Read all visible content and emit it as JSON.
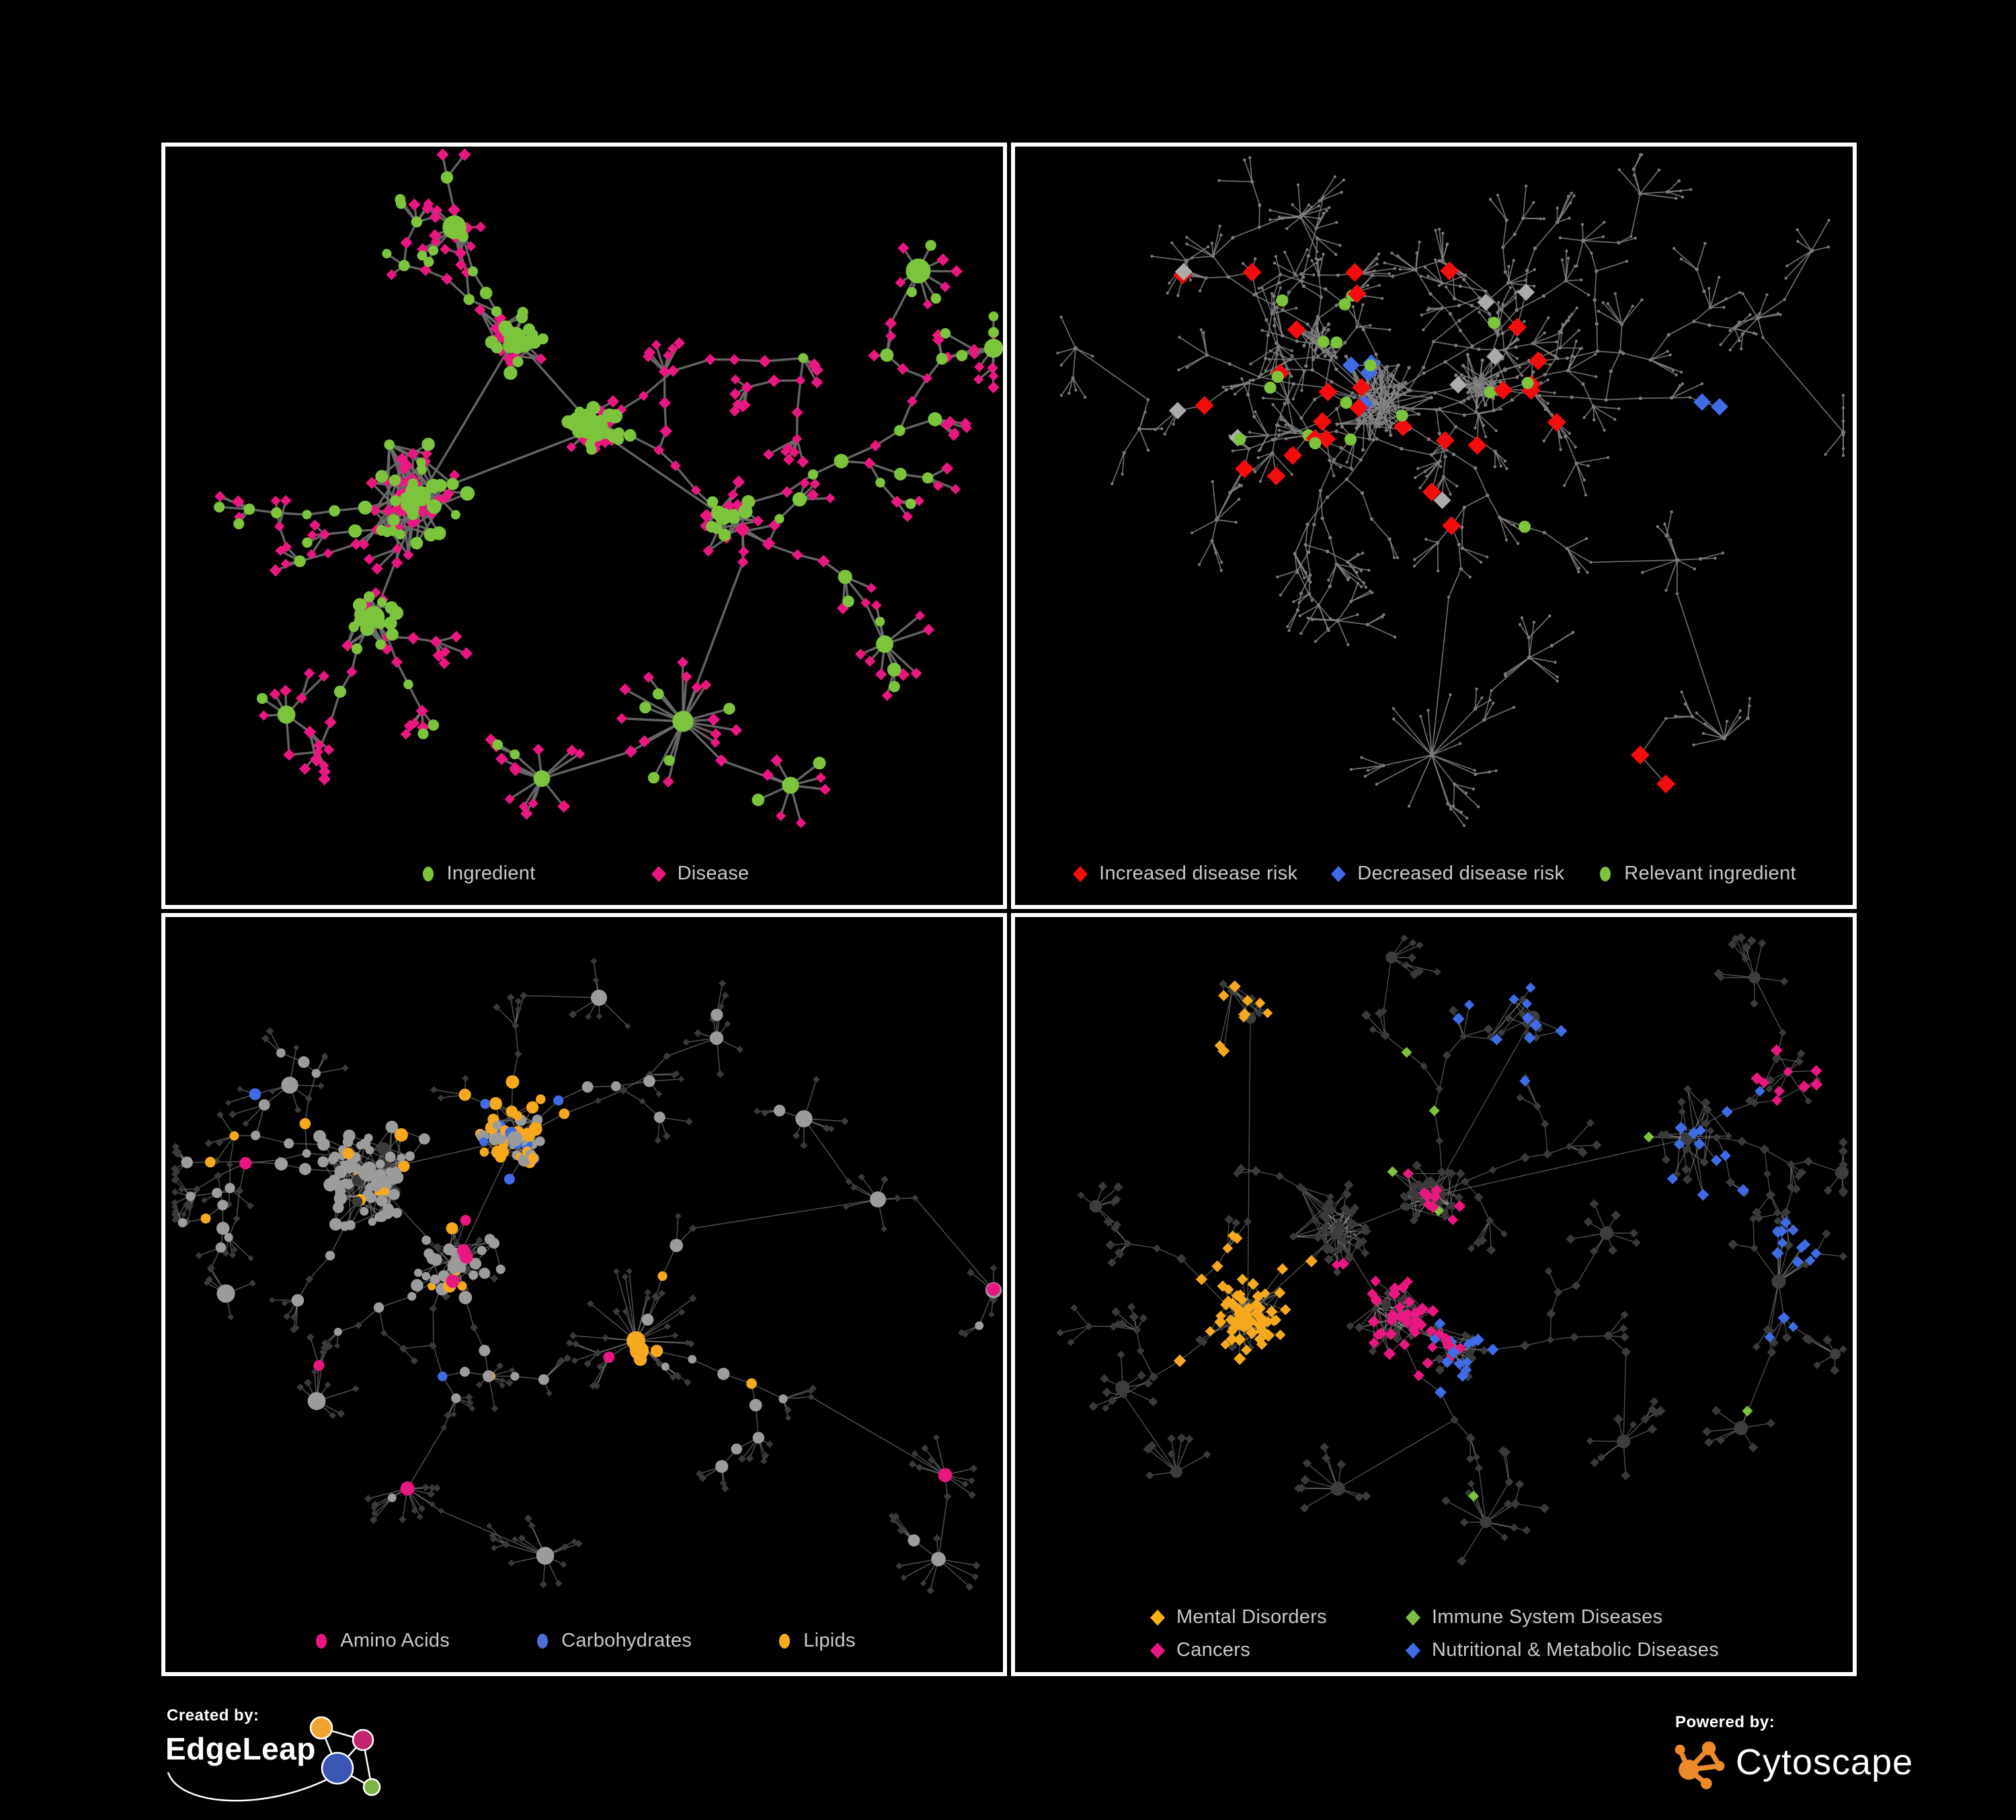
{
  "panels": [
    {
      "id": "ingredient-disease",
      "legend": [
        {
          "label": "Ingredient",
          "shape": "ellipse",
          "color": "#7cc43c"
        },
        {
          "label": "Disease",
          "shape": "diamond",
          "color": "#eb1780"
        }
      ]
    },
    {
      "id": "disease-risk",
      "legend": [
        {
          "label": "Increased disease risk",
          "shape": "diamond",
          "color": "#f50d0d"
        },
        {
          "label": "Decreased disease risk",
          "shape": "diamond",
          "color": "#3f6be5"
        },
        {
          "label": "Relevant ingredient",
          "shape": "ellipse",
          "color": "#7cc43c"
        }
      ]
    },
    {
      "id": "ingredient-categories",
      "legend": [
        {
          "label": "Amino Acids",
          "shape": "ellipse",
          "color": "#eb1780"
        },
        {
          "label": "Carbohydrates",
          "shape": "ellipse",
          "color": "#4a6fd8"
        },
        {
          "label": "Lipids",
          "shape": "ellipse",
          "color": "#f9ae18"
        }
      ]
    },
    {
      "id": "disease-categories",
      "legend": [
        {
          "label": "Mental Disorders",
          "shape": "diamond",
          "color": "#f9ae18"
        },
        {
          "label": "Immune System Diseases",
          "shape": "diamond",
          "color": "#76c043"
        },
        {
          "label": "Cancers",
          "shape": "diamond",
          "color": "#eb1780"
        },
        {
          "label": "Nutritional & Metabolic Diseases",
          "shape": "diamond",
          "color": "#3f6be5"
        }
      ]
    }
  ],
  "footer": {
    "created_by_label": "Created by:",
    "created_by_name": "EdgeLeap",
    "powered_by_label": "Powered by:",
    "powered_by_name": "Cytoscape"
  },
  "colors": {
    "green": "#7cc43c",
    "pink": "#eb1780",
    "red": "#f50d0d",
    "blue": "#3f6be5",
    "orange": "#f7a91e",
    "gray_node": "#9c9c9c",
    "light_gray_diamond": "#ababab",
    "dark_diamond": "#3a3a3a",
    "tiny_dot": "#7a7a7a",
    "edge_tl": "#6b6b6b",
    "edge_tr": "#8a8a8a",
    "edge_bl": "#8f8f8f",
    "edge_br": "#9c9c9c",
    "panel_border": "#ffffff",
    "background": "#000000",
    "legend_text": "#c9c9c9",
    "edgeleap_orange": "#f0a32f",
    "edgeleap_crimson": "#c2246e",
    "edgeleap_blue": "#3a57b5",
    "edgeleap_green": "#7cb342",
    "cytoscape_orange": "#ee8a2a"
  }
}
